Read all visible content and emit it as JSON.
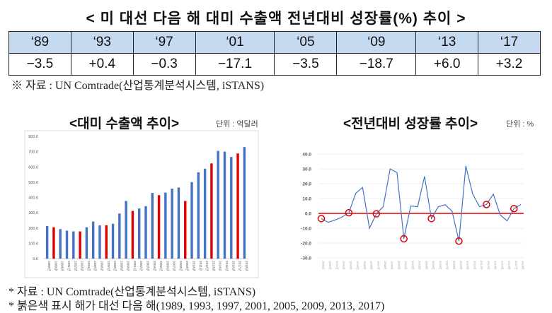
{
  "title": "< 미 대선 다음 해 대미 수출액 전년대비 성장률(%) 추이 >",
  "table": {
    "years": [
      "‘89",
      "‘93",
      "‘97",
      "‘01",
      "‘05",
      "‘09",
      "‘13",
      "‘17"
    ],
    "values": [
      "−3.5",
      "+0.4",
      "−0.3",
      "−17.1",
      "−3.5",
      "−18.7",
      "+6.0",
      "+3.2"
    ]
  },
  "source_top": "※ 자료 : UN Comtrade(산업통계분석시스템, iSTANS)",
  "footnotes": [
    "* 자료 : UN Comtrade(산업통계분석시스템, iSTANS)",
    "* 붉은색 표시 해가 대선 다음 해(1989, 1993, 1997, 2001, 2005, 2009, 2013, 2017)"
  ],
  "colors": {
    "blue": "#4472c4",
    "red": "#e00000",
    "header_bg": "#c5d9f1"
  },
  "chart_data": [
    {
      "type": "bar",
      "title": "<대미 수출액 추이>",
      "unit": "단위 : 억달러",
      "ylim": [
        0,
        800
      ],
      "yticks": [
        "0.0",
        "100.0",
        "200.0",
        "300.0",
        "400.0",
        "500.0",
        "600.0",
        "700.0",
        "800.0"
      ],
      "categories": [
        "1988년",
        "1989년",
        "1990년",
        "1991년",
        "1992년",
        "1993년",
        "1994년",
        "1995년",
        "1996년",
        "1997년",
        "1998년",
        "1999년",
        "2000년",
        "2001년",
        "2002년",
        "2003년",
        "2004년",
        "2005년",
        "2006년",
        "2007년",
        "2008년",
        "2009년",
        "2010년",
        "2011년",
        "2012년",
        "2013년",
        "2014년",
        "2015년",
        "2016년",
        "2017년",
        "2018년"
      ],
      "values": [
        213,
        205,
        193,
        183,
        178,
        178,
        205,
        242,
        218,
        218,
        228,
        295,
        377,
        312,
        328,
        343,
        430,
        415,
        432,
        458,
        465,
        377,
        500,
        565,
        588,
        623,
        705,
        700,
        665,
        688,
        730
      ],
      "highlight": [
        "1989년",
        "1993년",
        "1997년",
        "2001년",
        "2005년",
        "2009년",
        "2013년",
        "2017년"
      ]
    },
    {
      "type": "line",
      "title": "<전년대비 성장률 추이>",
      "unit": "단위 : %",
      "ylim": [
        -30,
        40
      ],
      "yticks": [
        "-30.0",
        "-20.0",
        "-10.0",
        "0.0",
        "10.0",
        "20.0",
        "30.0",
        "40.0"
      ],
      "categories": [
        "1989년",
        "1990년",
        "1991년",
        "1992년",
        "1993년",
        "1994년",
        "1995년",
        "1996년",
        "1997년",
        "1998년",
        "1999년",
        "2000년",
        "2001년",
        "2002년",
        "2003년",
        "2004년",
        "2005년",
        "2006년",
        "2007년",
        "2008년",
        "2009년",
        "2010년",
        "2011년",
        "2012년",
        "2013년",
        "2014년",
        "2015년",
        "2016년",
        "2017년",
        "2018년"
      ],
      "values": [
        -3.5,
        -6,
        -4.5,
        -2.5,
        0.4,
        13.5,
        17.5,
        -10,
        -0.3,
        4.5,
        30,
        27.5,
        -17.1,
        5,
        4.5,
        25,
        -3.5,
        4.5,
        5.8,
        1.5,
        -18.7,
        32,
        13,
        4.5,
        6.0,
        13,
        -1,
        -5,
        3.2,
        6
      ],
      "highlight": [
        "1989년",
        "1993년",
        "1997년",
        "2001년",
        "2005년",
        "2009년",
        "2013년",
        "2017년"
      ]
    }
  ]
}
